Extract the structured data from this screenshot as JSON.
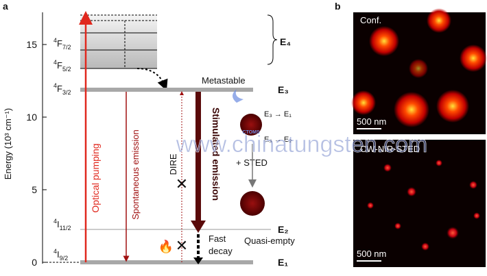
{
  "panel_a": {
    "letter": "a",
    "y_axis_label": "Energy (10³ cm⁻¹)",
    "yticks": [
      "0",
      "5",
      "10",
      "15"
    ],
    "states": [
      {
        "sup": "4",
        "base": "F",
        "sub": "7/2"
      },
      {
        "sup": "4",
        "base": "F",
        "sub": "5/2"
      },
      {
        "sup": "4",
        "base": "F",
        "sub": "3/2"
      },
      {
        "sup": "4",
        "base": "I",
        "sub": "11/2"
      },
      {
        "sup": "4",
        "base": "I",
        "sub": "9/2"
      }
    ],
    "levels": [
      "E₄",
      "E₃",
      "E₂",
      "E₁"
    ],
    "metastable": "Metastable",
    "optical_pumping": "Optical pumping",
    "spontaneous_emission": "Spontaneous emission",
    "dire": "DIRE",
    "stimulated_emission": "Stimulated emission",
    "transition_1": "E₃ → E₁",
    "transition_2": "E₃ → E₂",
    "sted": "+ STED",
    "fast_decay": [
      "Fast",
      "decay"
    ],
    "quasi_empty": "Quasi-empty",
    "logo": "CTOMS"
  },
  "panel_b": {
    "letter": "b",
    "top_label": "Conf.",
    "top_scale": "500 nm",
    "bottom_label": "CW-NIR-STED",
    "bottom_scale": "500 nm"
  },
  "watermark": "www.chinatungsten.com"
}
